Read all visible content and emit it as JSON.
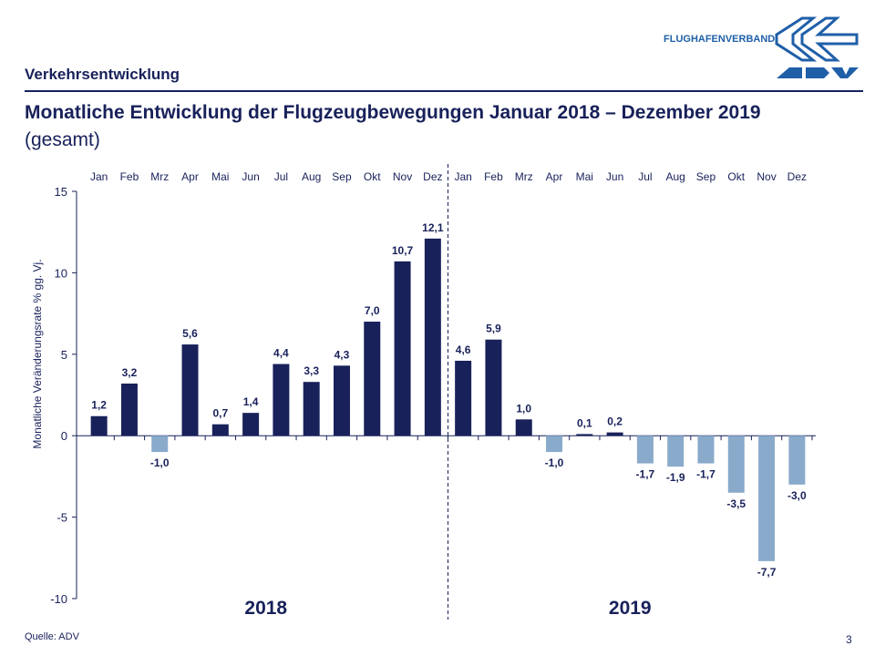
{
  "header": {
    "section": "Verkehrsentwicklung",
    "brand_text": "FLUGHAFENVERBAND",
    "logo_text": "ADV"
  },
  "footer": {
    "source": "Quelle: ADV",
    "page_number": "3"
  },
  "colors": {
    "positive": "#18215a",
    "negative": "#8aaacb",
    "text": "#18215a",
    "brand": "#1f5fa8"
  },
  "chart_data": {
    "type": "bar",
    "title": "Monatliche Entwicklung der Flugzeugbewegungen Januar 2018 – Dezember 2019",
    "subtitle": "(gesamt)",
    "ylabel": "Monatliche Veränderungsrate % gg. Vj.",
    "ylim": [
      -10,
      15
    ],
    "yticks": [
      -10,
      -5,
      0,
      5,
      10,
      15
    ],
    "groups": [
      "2018",
      "2019"
    ],
    "categories": [
      "Jan",
      "Feb",
      "Mrz",
      "Apr",
      "Mai",
      "Jun",
      "Jul",
      "Aug",
      "Sep",
      "Okt",
      "Nov",
      "Dez",
      "Jan",
      "Feb",
      "Mrz",
      "Apr",
      "Mai",
      "Jun",
      "Jul",
      "Aug",
      "Sep",
      "Okt",
      "Nov",
      "Dez"
    ],
    "values": [
      1.2,
      3.2,
      -1.0,
      5.6,
      0.7,
      1.4,
      4.4,
      3.3,
      4.3,
      7.0,
      10.7,
      12.1,
      4.6,
      5.9,
      1.0,
      -1.0,
      0.1,
      0.2,
      -1.7,
      -1.9,
      -1.7,
      -3.5,
      -7.7,
      -3.0
    ],
    "grid": false
  }
}
